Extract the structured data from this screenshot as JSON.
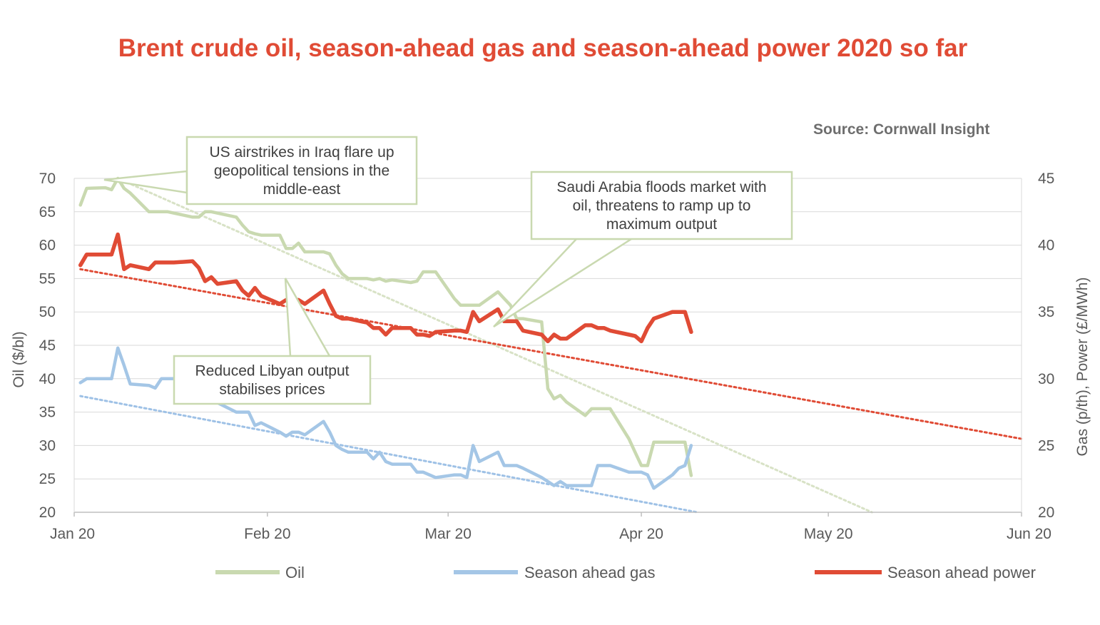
{
  "chart_data": {
    "type": "line",
    "title": "Brent crude oil, season-ahead gas and season-ahead power 2020 so far",
    "source": "Source: Cornwall Insight",
    "y_left": {
      "label": "Oil ($/bl)",
      "ticks": [
        "20",
        "25",
        "30",
        "35",
        "40",
        "45",
        "50",
        "55",
        "60",
        "65",
        "70"
      ],
      "range": [
        20,
        70
      ]
    },
    "y_right": {
      "label": "Gas (p/th), Power (£/MWh)",
      "ticks": [
        "20",
        "25",
        "30",
        "35",
        "40",
        "45"
      ],
      "range": [
        20,
        45
      ]
    },
    "x_axis": {
      "ticks": [
        "Jan 20",
        "Feb 20",
        "Mar 20",
        "Apr 20",
        "May 20",
        "Jun 20"
      ],
      "tick_dates": [
        "2020-01-01",
        "2020-02-01",
        "2020-03-01",
        "2020-04-01",
        "2020-05-01",
        "2020-06-01"
      ],
      "range": [
        "2020-01-01",
        "2020-06-01"
      ]
    },
    "grid": "horizontal",
    "legend": "bottom",
    "series": [
      {
        "name": "Oil",
        "axis": "left",
        "color": "#c9d9b0",
        "points": [
          [
            "2020-01-02",
            66
          ],
          [
            "2020-01-03",
            68.5
          ],
          [
            "2020-01-06",
            68.6
          ],
          [
            "2020-01-07",
            68.3
          ],
          [
            "2020-01-08",
            70
          ],
          [
            "2020-01-09",
            68.5
          ],
          [
            "2020-01-10",
            67.8
          ],
          [
            "2020-01-13",
            65
          ],
          [
            "2020-01-14",
            65
          ],
          [
            "2020-01-15",
            65
          ],
          [
            "2020-01-16",
            65
          ],
          [
            "2020-01-17",
            64.8
          ],
          [
            "2020-01-20",
            64.2
          ],
          [
            "2020-01-21",
            64.2
          ],
          [
            "2020-01-22",
            65
          ],
          [
            "2020-01-23",
            65
          ],
          [
            "2020-01-24",
            64.8
          ],
          [
            "2020-01-27",
            64.2
          ],
          [
            "2020-01-28",
            63
          ],
          [
            "2020-01-29",
            62
          ],
          [
            "2020-01-30",
            61.7
          ],
          [
            "2020-01-31",
            61.5
          ],
          [
            "2020-02-03",
            61.5
          ],
          [
            "2020-02-04",
            59.5
          ],
          [
            "2020-02-05",
            59.5
          ],
          [
            "2020-02-06",
            60.3
          ],
          [
            "2020-02-07",
            59
          ],
          [
            "2020-02-10",
            59
          ],
          [
            "2020-02-11",
            58.7
          ],
          [
            "2020-02-12",
            57
          ],
          [
            "2020-02-13",
            55.7
          ],
          [
            "2020-02-14",
            55
          ],
          [
            "2020-02-17",
            55
          ],
          [
            "2020-02-18",
            54.8
          ],
          [
            "2020-02-19",
            55
          ],
          [
            "2020-02-20",
            54.6
          ],
          [
            "2020-02-21",
            54.8
          ],
          [
            "2020-02-24",
            54.4
          ],
          [
            "2020-02-25",
            54.6
          ],
          [
            "2020-02-26",
            56
          ],
          [
            "2020-02-27",
            56
          ],
          [
            "2020-02-28",
            56
          ],
          [
            "2020-03-02",
            52
          ],
          [
            "2020-03-03",
            51
          ],
          [
            "2020-03-04",
            51
          ],
          [
            "2020-03-05",
            51
          ],
          [
            "2020-03-06",
            51
          ],
          [
            "2020-03-09",
            53
          ],
          [
            "2020-03-10",
            52
          ],
          [
            "2020-03-11",
            51
          ],
          [
            "2020-03-12",
            49
          ],
          [
            "2020-03-13",
            49
          ],
          [
            "2020-03-16",
            48.5
          ],
          [
            "2020-03-17",
            38.5
          ],
          [
            "2020-03-18",
            37
          ],
          [
            "2020-03-19",
            37.5
          ],
          [
            "2020-03-20",
            36.5
          ],
          [
            "2020-03-23",
            34.5
          ],
          [
            "2020-03-24",
            35.5
          ],
          [
            "2020-03-25",
            35.5
          ],
          [
            "2020-03-26",
            35.5
          ],
          [
            "2020-03-27",
            35.5
          ],
          [
            "2020-03-30",
            31
          ],
          [
            "2020-03-31",
            29
          ],
          [
            "2020-04-01",
            27
          ],
          [
            "2020-04-02",
            27
          ],
          [
            "2020-04-03",
            30.5
          ],
          [
            "2020-04-06",
            30.5
          ],
          [
            "2020-04-07",
            30.5
          ],
          [
            "2020-04-08",
            30.5
          ],
          [
            "2020-04-09",
            25.5
          ]
        ]
      },
      {
        "name": "Season ahead gas",
        "axis": "right",
        "color": "#a4c6e6",
        "points": [
          [
            "2020-01-02",
            29.7
          ],
          [
            "2020-01-03",
            30
          ],
          [
            "2020-01-06",
            30
          ],
          [
            "2020-01-07",
            30
          ],
          [
            "2020-01-08",
            32.3
          ],
          [
            "2020-01-09",
            31
          ],
          [
            "2020-01-10",
            29.6
          ],
          [
            "2020-01-13",
            29.5
          ],
          [
            "2020-01-14",
            29.3
          ],
          [
            "2020-01-15",
            30
          ],
          [
            "2020-01-16",
            30
          ],
          [
            "2020-01-17",
            30
          ],
          [
            "2020-01-20",
            30
          ],
          [
            "2020-01-21",
            30
          ],
          [
            "2020-01-22",
            29.5
          ],
          [
            "2020-01-23",
            28.5
          ],
          [
            "2020-01-24",
            28.2
          ],
          [
            "2020-01-27",
            27.5
          ],
          [
            "2020-01-28",
            27.5
          ],
          [
            "2020-01-29",
            27.5
          ],
          [
            "2020-01-30",
            26.5
          ],
          [
            "2020-01-31",
            26.7
          ],
          [
            "2020-02-03",
            26
          ],
          [
            "2020-02-04",
            25.7
          ],
          [
            "2020-02-05",
            26
          ],
          [
            "2020-02-06",
            26
          ],
          [
            "2020-02-07",
            25.8
          ],
          [
            "2020-02-10",
            26.8
          ],
          [
            "2020-02-11",
            26
          ],
          [
            "2020-02-12",
            25
          ],
          [
            "2020-02-13",
            24.7
          ],
          [
            "2020-02-14",
            24.5
          ],
          [
            "2020-02-17",
            24.5
          ],
          [
            "2020-02-18",
            24
          ],
          [
            "2020-02-19",
            24.5
          ],
          [
            "2020-02-20",
            23.8
          ],
          [
            "2020-02-21",
            23.6
          ],
          [
            "2020-02-24",
            23.6
          ],
          [
            "2020-02-25",
            23
          ],
          [
            "2020-02-26",
            23
          ],
          [
            "2020-02-27",
            22.8
          ],
          [
            "2020-02-28",
            22.6
          ],
          [
            "2020-03-02",
            22.8
          ],
          [
            "2020-03-03",
            22.8
          ],
          [
            "2020-03-04",
            22.6
          ],
          [
            "2020-03-05",
            25
          ],
          [
            "2020-03-06",
            23.8
          ],
          [
            "2020-03-09",
            24.5
          ],
          [
            "2020-03-10",
            23.5
          ],
          [
            "2020-03-11",
            23.5
          ],
          [
            "2020-03-12",
            23.5
          ],
          [
            "2020-03-13",
            23.3
          ],
          [
            "2020-03-16",
            22.6
          ],
          [
            "2020-03-17",
            22.3
          ],
          [
            "2020-03-18",
            22
          ],
          [
            "2020-03-19",
            22.3
          ],
          [
            "2020-03-20",
            22
          ],
          [
            "2020-03-23",
            22
          ],
          [
            "2020-03-24",
            22
          ],
          [
            "2020-03-25",
            23.5
          ],
          [
            "2020-03-26",
            23.5
          ],
          [
            "2020-03-27",
            23.5
          ],
          [
            "2020-03-30",
            23
          ],
          [
            "2020-03-31",
            23
          ],
          [
            "2020-04-01",
            23
          ],
          [
            "2020-04-02",
            22.8
          ],
          [
            "2020-04-03",
            21.8
          ],
          [
            "2020-04-06",
            22.8
          ],
          [
            "2020-04-07",
            23.3
          ],
          [
            "2020-04-08",
            23.5
          ],
          [
            "2020-04-09",
            25
          ]
        ]
      },
      {
        "name": "Season ahead power",
        "axis": "right",
        "color": "#e04b35",
        "points": [
          [
            "2020-01-02",
            38.5
          ],
          [
            "2020-01-03",
            39.3
          ],
          [
            "2020-01-06",
            39.3
          ],
          [
            "2020-01-07",
            39.3
          ],
          [
            "2020-01-08",
            40.8
          ],
          [
            "2020-01-09",
            38.2
          ],
          [
            "2020-01-10",
            38.5
          ],
          [
            "2020-01-13",
            38.2
          ],
          [
            "2020-01-14",
            38.7
          ],
          [
            "2020-01-15",
            38.7
          ],
          [
            "2020-01-16",
            38.7
          ],
          [
            "2020-01-17",
            38.7
          ],
          [
            "2020-01-20",
            38.8
          ],
          [
            "2020-01-21",
            38.3
          ],
          [
            "2020-01-22",
            37.3
          ],
          [
            "2020-01-23",
            37.6
          ],
          [
            "2020-01-24",
            37.1
          ],
          [
            "2020-01-27",
            37.3
          ],
          [
            "2020-01-28",
            36.6
          ],
          [
            "2020-01-29",
            36.2
          ],
          [
            "2020-01-30",
            36.8
          ],
          [
            "2020-01-31",
            36.2
          ],
          [
            "2020-02-03",
            35.6
          ],
          [
            "2020-02-04",
            35.9
          ],
          [
            "2020-02-05",
            35.9
          ],
          [
            "2020-02-06",
            35.9
          ],
          [
            "2020-02-07",
            35.6
          ],
          [
            "2020-02-10",
            36.6
          ],
          [
            "2020-02-11",
            35.6
          ],
          [
            "2020-02-12",
            34.7
          ],
          [
            "2020-02-13",
            34.5
          ],
          [
            "2020-02-14",
            34.5
          ],
          [
            "2020-02-17",
            34.2
          ],
          [
            "2020-02-18",
            33.8
          ],
          [
            "2020-02-19",
            33.8
          ],
          [
            "2020-02-20",
            33.3
          ],
          [
            "2020-02-21",
            33.8
          ],
          [
            "2020-02-24",
            33.8
          ],
          [
            "2020-02-25",
            33.3
          ],
          [
            "2020-02-26",
            33.3
          ],
          [
            "2020-02-27",
            33.2
          ],
          [
            "2020-02-28",
            33.5
          ],
          [
            "2020-03-02",
            33.6
          ],
          [
            "2020-03-03",
            33.6
          ],
          [
            "2020-03-04",
            33.5
          ],
          [
            "2020-03-05",
            35
          ],
          [
            "2020-03-06",
            34.3
          ],
          [
            "2020-03-09",
            35.2
          ],
          [
            "2020-03-10",
            34.3
          ],
          [
            "2020-03-11",
            34.3
          ],
          [
            "2020-03-12",
            34.3
          ],
          [
            "2020-03-13",
            33.6
          ],
          [
            "2020-03-16",
            33.3
          ],
          [
            "2020-03-17",
            32.8
          ],
          [
            "2020-03-18",
            33.3
          ],
          [
            "2020-03-19",
            33
          ],
          [
            "2020-03-20",
            33
          ],
          [
            "2020-03-23",
            34
          ],
          [
            "2020-03-24",
            34
          ],
          [
            "2020-03-25",
            33.8
          ],
          [
            "2020-03-26",
            33.8
          ],
          [
            "2020-03-27",
            33.6
          ],
          [
            "2020-03-30",
            33.3
          ],
          [
            "2020-03-31",
            33.2
          ],
          [
            "2020-04-01",
            32.8
          ],
          [
            "2020-04-02",
            33.8
          ],
          [
            "2020-04-03",
            34.5
          ],
          [
            "2020-04-06",
            35
          ],
          [
            "2020-04-07",
            35
          ],
          [
            "2020-04-08",
            35
          ],
          [
            "2020-04-09",
            33.5
          ]
        ]
      }
    ],
    "trendlines": [
      {
        "series": "Oil",
        "axis": "left",
        "color": "#d8e2c6",
        "from": [
          "2020-01-08",
          70
        ],
        "to": [
          "2020-05-08",
          20
        ]
      },
      {
        "series": "Season ahead gas",
        "axis": "right",
        "color": "#9ec1e6",
        "from": [
          "2020-01-02",
          28.7
        ],
        "to": [
          "2020-04-10",
          20
        ]
      },
      {
        "series": "Season ahead power",
        "axis": "right",
        "color": "#e04b35",
        "from": [
          "2020-01-02",
          38.2
        ],
        "to": [
          "2020-06-01",
          25.5
        ]
      }
    ],
    "annotations": [
      {
        "lines": [
          "US airstrikes in Iraq flare up",
          "geopolitical tensions in the",
          "middle-east"
        ]
      },
      {
        "lines": [
          "Saudi Arabia floods market with",
          "oil, threatens to ramp up to",
          "maximum output"
        ]
      },
      {
        "lines": [
          "Reduced Libyan output",
          "stabilises prices"
        ]
      }
    ]
  }
}
